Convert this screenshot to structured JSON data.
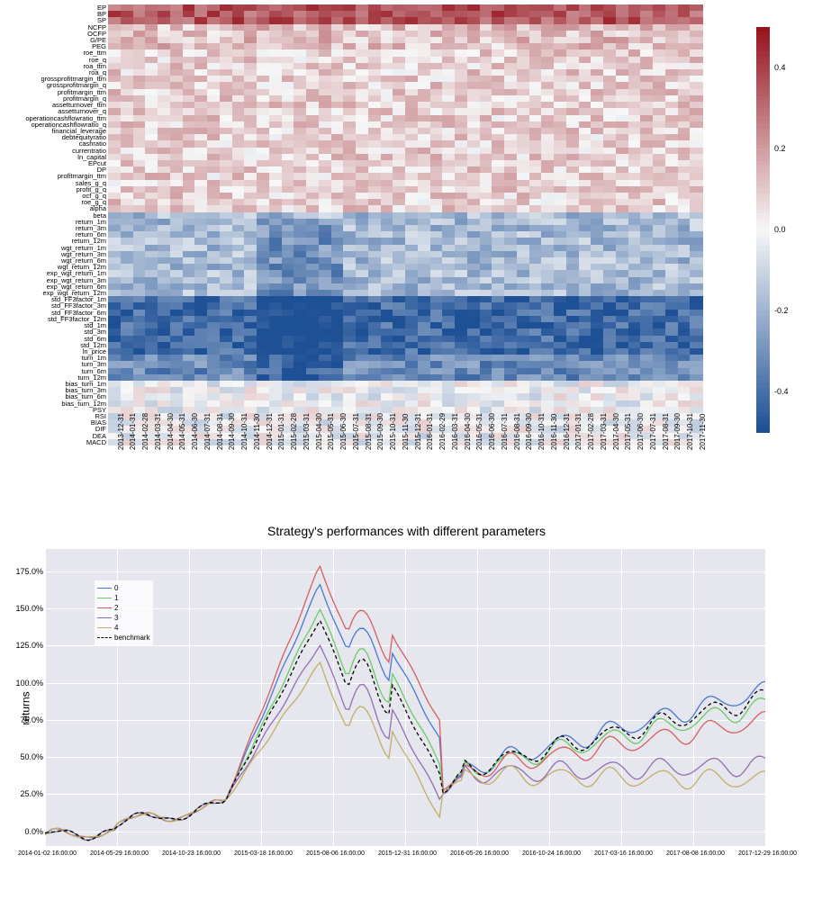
{
  "heatmap": {
    "type": "heatmap",
    "colormap": "RdBu_r",
    "vmin": -0.5,
    "vmax": 0.5,
    "rows": [
      "EP",
      "BP",
      "SP",
      "NCFP",
      "OCFP",
      "G/PE",
      "PEG",
      "roe_ttm",
      "roe_q",
      "roa_ttm",
      "roa_q",
      "grossprofitmargin_ttm",
      "grossprofitmargin_q",
      "profitmargin_ttm",
      "profitmargin_q",
      "assetturnover_ttm",
      "assetturnover_q",
      "operationcashflowratio_ttm",
      "operationcashflowratio_q",
      "financial_leverage",
      "debtequityratio",
      "cashratio",
      "currentratio",
      "ln_capital",
      "EPcut",
      "DP",
      "profitmargin_ttm",
      "sales_g_q",
      "profit_g_q",
      "ocf_g_q",
      "roe_g_q",
      "alpha",
      "beta",
      "return_1m",
      "return_3m",
      "return_6m",
      "return_12m",
      "wgt_return_1m",
      "wgt_return_3m",
      "wgt_return_6m",
      "wgt_return_12m",
      "exp_wgt_return_1m",
      "exp_wgt_return_3m",
      "exp_wgt_return_6m",
      "exp_wgt_return_12m",
      "std_FF3factor_1m",
      "std_FF3factor_3m",
      "std_FF3factor_6m",
      "std_FF3factor_12m",
      "std_1m",
      "std_3m",
      "std_6m",
      "std_12m",
      "ln_price",
      "turn_1m",
      "turn_3m",
      "turn_6m",
      "turn_12m",
      "bias_turn_1m",
      "bias_turn_3m",
      "bias_turn_6m",
      "bias_turn_12m",
      "PSY",
      "RSI",
      "BIAS",
      "DIF",
      "DEA",
      "MACD"
    ],
    "cols": [
      "2013-12-31",
      "2014-01-31",
      "2014-02-28",
      "2014-03-31",
      "2014-04-30",
      "2014-05-31",
      "2014-06-30",
      "2014-07-31",
      "2014-08-31",
      "2014-09-30",
      "2014-10-31",
      "2014-11-30",
      "2014-12-31",
      "2015-01-31",
      "2015-02-28",
      "2015-03-31",
      "2015-04-30",
      "2015-05-31",
      "2015-06-30",
      "2015-07-31",
      "2015-08-31",
      "2015-09-30",
      "2015-10-31",
      "2015-11-30",
      "2015-12-31",
      "2016-01-31",
      "2016-02-29",
      "2016-03-31",
      "2016-04-30",
      "2016-05-31",
      "2016-06-30",
      "2016-07-31",
      "2016-08-31",
      "2016-09-30",
      "2016-10-31",
      "2016-11-30",
      "2016-12-31",
      "2017-01-31",
      "2017-02-28",
      "2017-03-31",
      "2017-04-30",
      "2017-05-31",
      "2017-06-30",
      "2017-07-31",
      "2017-08-31",
      "2017-09-30",
      "2017-10-31",
      "2017-11-30"
    ],
    "colorbar_ticks": [
      {
        "v": 0.4,
        "pos": 0.1
      },
      {
        "v": 0.2,
        "pos": 0.3
      },
      {
        "v": 0.0,
        "pos": 0.5
      },
      {
        "v": -0.2,
        "pos": 0.7
      },
      {
        "v": -0.4,
        "pos": 0.9
      }
    ]
  },
  "linechart": {
    "type": "line",
    "title": "Strategy's performances with different parameters",
    "ylabel": "returns",
    "ylim": [
      -10,
      190
    ],
    "yticks": [
      0,
      25,
      50,
      75,
      100,
      125,
      150,
      175
    ],
    "xtick_labels": [
      "2014-01-02 16:00:00",
      "2014-05-29 16:00:00",
      "2014-10-23 16:00:00",
      "2015-03-18 16:00:00",
      "2015-08-06 16:00:00",
      "2015-12-31 16:00:00",
      "2016-05-26 16:00:00",
      "2016-10-24 16:00:00",
      "2017-03-16 16:00:00",
      "2017-08-08 16:00:00",
      "2017-12-29 16:00:00"
    ],
    "series": [
      {
        "label": "0",
        "color": "#4878cf",
        "dash": false
      },
      {
        "label": "1",
        "color": "#6acc65",
        "dash": false
      },
      {
        "label": "2",
        "color": "#d65f5f",
        "dash": false
      },
      {
        "label": "3",
        "color": "#956cb4",
        "dash": false
      },
      {
        "label": "4",
        "color": "#c4ad66",
        "dash": false
      },
      {
        "label": "benchmark",
        "color": "#000000",
        "dash": true
      }
    ],
    "background_color": "#e6e6ee",
    "grid_color": "#ffffff"
  },
  "hm_values": []
}
